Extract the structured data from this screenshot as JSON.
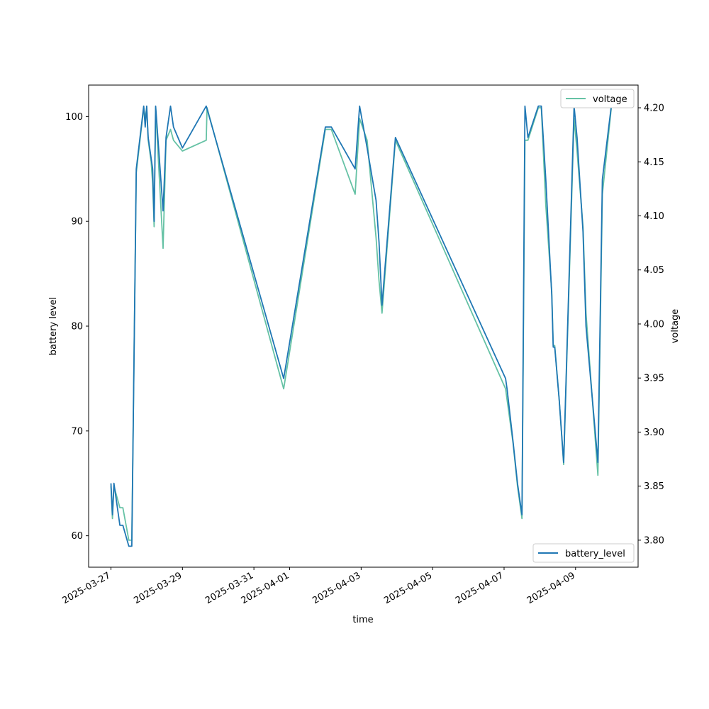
{
  "chart_data": {
    "type": "line",
    "xlabel": "time",
    "ylabel_left": "battery level",
    "ylabel_right": "voltage",
    "x_ticks": [
      "2025-03-27",
      "2025-03-29",
      "2025-03-31",
      "2025-04-01",
      "2025-04-03",
      "2025-04-05",
      "2025-04-07",
      "2025-04-09"
    ],
    "y_left_ticks": [
      60,
      70,
      80,
      90,
      100
    ],
    "y_right_ticks": [
      "3.80",
      "3.85",
      "3.90",
      "3.95",
      "4.00",
      "4.05",
      "4.10",
      "4.15",
      "4.20"
    ],
    "xlim": [
      "2025-03-26 09:00",
      "2025-04-10 18:00"
    ],
    "ylim_left": [
      57,
      103
    ],
    "ylim_right": [
      3.775,
      4.221
    ],
    "grid": false,
    "series": [
      {
        "name": "battery_level",
        "axis": "left",
        "color": "#1f77b4",
        "legend_position": "lower-right",
        "points": [
          [
            "2025-03-27 00:00",
            65
          ],
          [
            "2025-03-27 01:00",
            62
          ],
          [
            "2025-03-27 02:00",
            65
          ],
          [
            "2025-03-27 06:00",
            61
          ],
          [
            "2025-03-27 08:00",
            61
          ],
          [
            "2025-03-27 12:00",
            59
          ],
          [
            "2025-03-27 14:00",
            59
          ],
          [
            "2025-03-27 17:00",
            95
          ],
          [
            "2025-03-27 22:00",
            101
          ],
          [
            "2025-03-27 23:00",
            99
          ],
          [
            "2025-03-28 00:00",
            101
          ],
          [
            "2025-03-28 01:00",
            98
          ],
          [
            "2025-03-28 03:00",
            96
          ],
          [
            "2025-03-28 04:00",
            95
          ],
          [
            "2025-03-28 05:00",
            90
          ],
          [
            "2025-03-28 06:00",
            101
          ],
          [
            "2025-03-28 11:00",
            91
          ],
          [
            "2025-03-28 13:00",
            98
          ],
          [
            "2025-03-28 16:00",
            101
          ],
          [
            "2025-03-28 18:00",
            99
          ],
          [
            "2025-03-29 00:00",
            97
          ],
          [
            "2025-03-29 16:00",
            101
          ],
          [
            "2025-03-31 16:00",
            77
          ],
          [
            "2025-03-31 20:00",
            75
          ],
          [
            "2025-04-02 00:00",
            99
          ],
          [
            "2025-04-02 04:00",
            99
          ],
          [
            "2025-04-02 20:00",
            95
          ],
          [
            "2025-04-02 23:00",
            101
          ],
          [
            "2025-04-03 04:00",
            97
          ],
          [
            "2025-04-03 10:00",
            92
          ],
          [
            "2025-04-03 12:00",
            88
          ],
          [
            "2025-04-03 14:00",
            82
          ],
          [
            "2025-04-03 23:00",
            98
          ],
          [
            "2025-04-07 01:00",
            75
          ],
          [
            "2025-04-07 02:00",
            74
          ],
          [
            "2025-04-07 06:00",
            69
          ],
          [
            "2025-04-07 09:00",
            65
          ],
          [
            "2025-04-07 10:00",
            64
          ],
          [
            "2025-04-07 12:00",
            62
          ],
          [
            "2025-04-07 14:00",
            101
          ],
          [
            "2025-04-07 16:00",
            98
          ],
          [
            "2025-04-07 23:00",
            101
          ],
          [
            "2025-04-08 01:00",
            101
          ],
          [
            "2025-04-08 04:00",
            94
          ],
          [
            "2025-04-08 08:00",
            83
          ],
          [
            "2025-04-08 09:00",
            78
          ],
          [
            "2025-04-08 10:00",
            78
          ],
          [
            "2025-04-08 13:00",
            73
          ],
          [
            "2025-04-08 16:00",
            67
          ],
          [
            "2025-04-08 23:00",
            101
          ],
          [
            "2025-04-09 01:00",
            98
          ],
          [
            "2025-04-09 05:00",
            89
          ],
          [
            "2025-04-09 07:00",
            80
          ],
          [
            "2025-04-09 15:00",
            67
          ],
          [
            "2025-04-09 18:00",
            94
          ],
          [
            "2025-04-10 00:00",
            101
          ]
        ]
      },
      {
        "name": "voltage",
        "axis": "right",
        "color": "#66c2a5",
        "legend_position": "upper-right",
        "points": [
          [
            "2025-03-27 00:00",
            3.85
          ],
          [
            "2025-03-27 01:00",
            3.82
          ],
          [
            "2025-03-27 02:00",
            3.85
          ],
          [
            "2025-03-27 06:00",
            3.83
          ],
          [
            "2025-03-27 08:00",
            3.83
          ],
          [
            "2025-03-27 12:00",
            3.8
          ],
          [
            "2025-03-27 14:00",
            3.8
          ],
          [
            "2025-03-27 17:00",
            4.14
          ],
          [
            "2025-03-27 22:00",
            4.2
          ],
          [
            "2025-03-27 23:00",
            4.19
          ],
          [
            "2025-03-28 00:00",
            4.2
          ],
          [
            "2025-03-28 01:00",
            4.17
          ],
          [
            "2025-03-28 03:00",
            4.15
          ],
          [
            "2025-03-28 04:00",
            4.13
          ],
          [
            "2025-03-28 05:00",
            4.09
          ],
          [
            "2025-03-28 06:00",
            4.2
          ],
          [
            "2025-03-28 11:00",
            4.07
          ],
          [
            "2025-03-28 13:00",
            4.17
          ],
          [
            "2025-03-28 16:00",
            4.18
          ],
          [
            "2025-03-28 18:00",
            4.17
          ],
          [
            "2025-03-29 00:00",
            4.16
          ],
          [
            "2025-03-29 16:00",
            4.17
          ],
          [
            "2025-03-29 16:30",
            4.2
          ],
          [
            "2025-03-31 16:00",
            3.96
          ],
          [
            "2025-03-31 20:00",
            3.94
          ],
          [
            "2025-04-02 00:00",
            4.18
          ],
          [
            "2025-04-02 04:00",
            4.18
          ],
          [
            "2025-04-02 20:00",
            4.12
          ],
          [
            "2025-04-02 23:00",
            4.19
          ],
          [
            "2025-04-03 04:00",
            4.17
          ],
          [
            "2025-04-03 10:00",
            4.08
          ],
          [
            "2025-04-03 12:00",
            4.04
          ],
          [
            "2025-04-03 14:00",
            4.01
          ],
          [
            "2025-04-03 23:00",
            4.17
          ],
          [
            "2025-04-07 01:00",
            3.94
          ],
          [
            "2025-04-07 02:00",
            3.93
          ],
          [
            "2025-04-07 06:00",
            3.89
          ],
          [
            "2025-04-07 09:00",
            3.85
          ],
          [
            "2025-04-07 10:00",
            3.84
          ],
          [
            "2025-04-07 12:00",
            3.82
          ],
          [
            "2025-04-07 14:00",
            4.17
          ],
          [
            "2025-04-07 16:00",
            4.17
          ],
          [
            "2025-04-07 23:00",
            4.2
          ],
          [
            "2025-04-08 01:00",
            4.2
          ],
          [
            "2025-04-08 04:00",
            4.11
          ],
          [
            "2025-04-08 08:00",
            4.03
          ],
          [
            "2025-04-08 09:00",
            3.98
          ],
          [
            "2025-04-08 10:00",
            3.98
          ],
          [
            "2025-04-08 13:00",
            3.93
          ],
          [
            "2025-04-08 16:00",
            3.87
          ],
          [
            "2025-04-08 23:00",
            4.19
          ],
          [
            "2025-04-09 01:00",
            4.16
          ],
          [
            "2025-04-09 05:00",
            4.09
          ],
          [
            "2025-04-09 07:00",
            4.01
          ],
          [
            "2025-04-09 15:00",
            3.86
          ],
          [
            "2025-04-09 18:00",
            4.12
          ],
          [
            "2025-04-10 00:00",
            4.2
          ]
        ]
      }
    ]
  }
}
